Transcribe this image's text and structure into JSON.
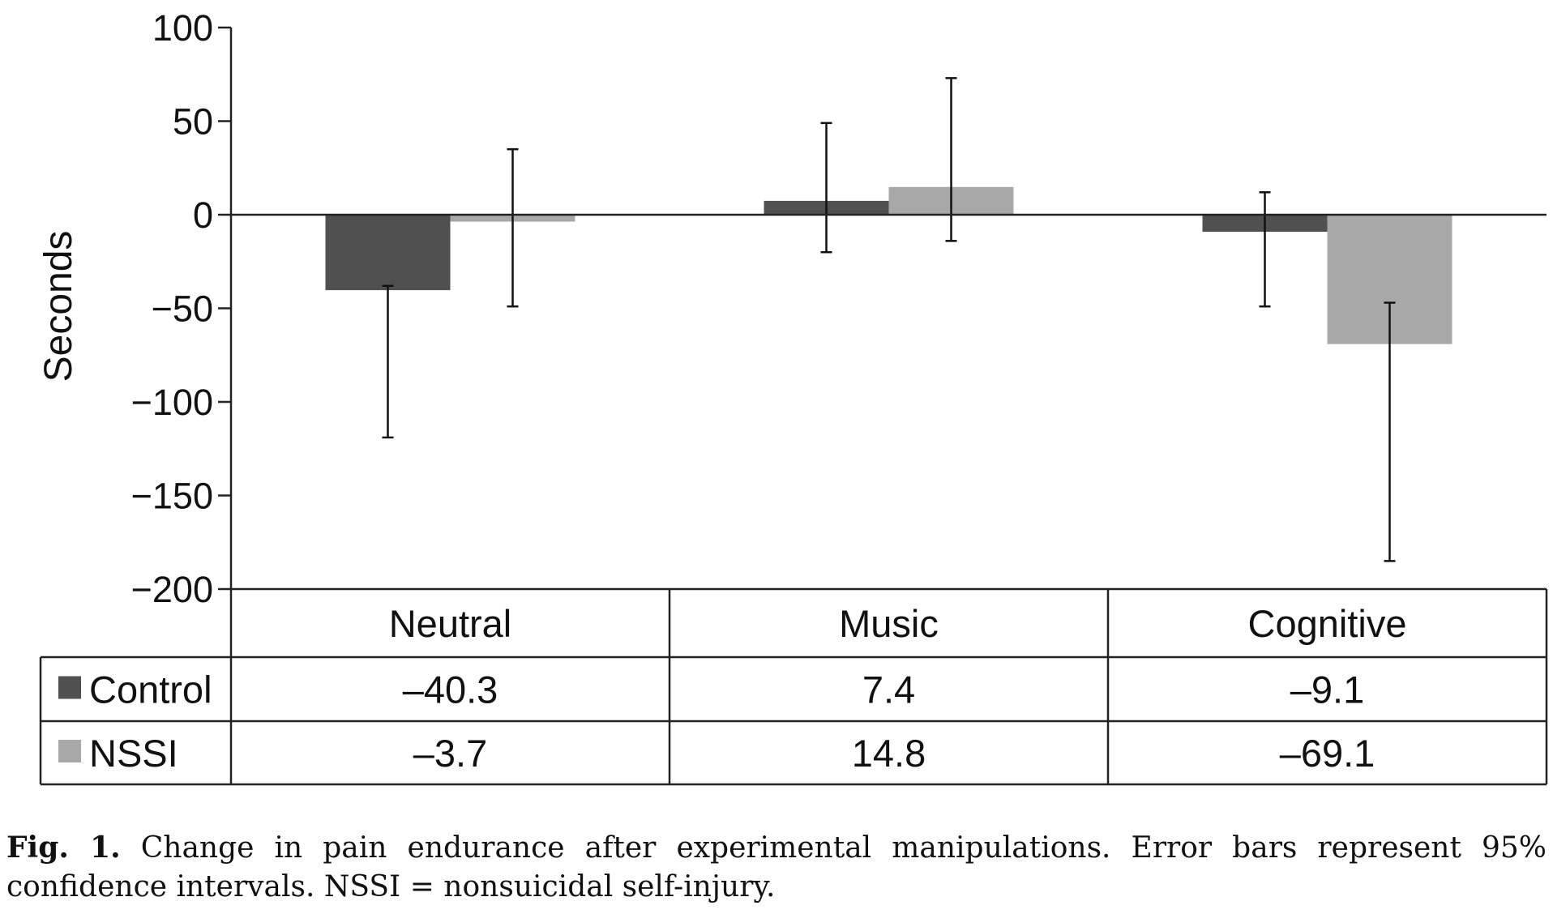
{
  "chart_data": {
    "type": "bar",
    "ylabel": "Seconds",
    "ylim": [
      -200,
      100
    ],
    "yticks": [
      100,
      50,
      0,
      -50,
      -100,
      -150,
      -200
    ],
    "ytick_labels": [
      "100",
      "50",
      "0",
      "−50",
      "−100",
      "−150",
      "−200"
    ],
    "categories": [
      "Neutral",
      "Music",
      "Cognitive"
    ],
    "series": [
      {
        "name": "Control",
        "color": "#505050",
        "values": [
          -40.3,
          7.4,
          -9.1
        ],
        "value_labels": [
          "–40.3",
          "7.4",
          "–9.1"
        ],
        "error_low": [
          -119,
          -20,
          -49
        ],
        "error_high": [
          -38,
          49,
          12
        ]
      },
      {
        "name": "NSSI",
        "color": "#a8a8a8",
        "values": [
          -3.7,
          14.8,
          -69.1
        ],
        "value_labels": [
          "–3.7",
          "14.8",
          "–69.1"
        ],
        "error_low": [
          -49,
          -14,
          -185
        ],
        "error_high": [
          35,
          73,
          -47
        ]
      }
    ],
    "grid": false,
    "legend": "data-table"
  },
  "caption": {
    "label": "Fig. 1.",
    "text": "Change in pain endurance after experimental manipulations. Error bars represent 95% confidence intervals. NSSI = nonsuicidal self-injury."
  }
}
